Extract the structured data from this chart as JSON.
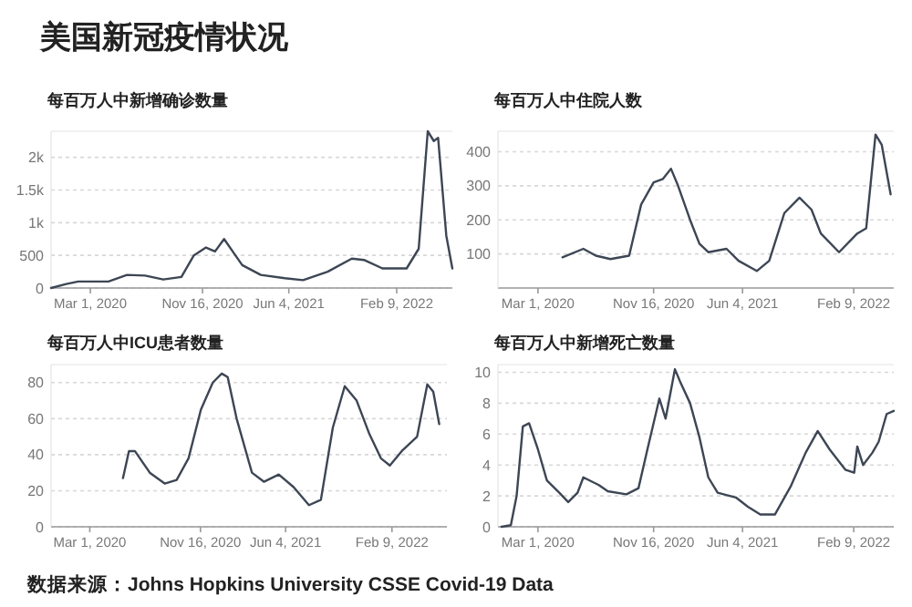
{
  "chart_data": [
    {
      "type": "line",
      "title": "美国新冠疫情状况",
      "subtitle": "每百万人中新增确诊数量",
      "annotations": [
        "数据来源：Johns Hopkins University CSSE Covid-19 Data"
      ],
      "grid": "y",
      "xlim": [
        "2019-12-01",
        "2022-06-18"
      ],
      "xticks": [
        {
          "value": "2020-03-01",
          "label": "Mar 1, 2020"
        },
        {
          "value": "2020-11-16",
          "label": "Nov 16, 2020"
        },
        {
          "value": "2021-06-04",
          "label": "Jun 4, 2021"
        },
        {
          "value": "2022-02-09",
          "label": "Feb 9, 2022"
        }
      ],
      "ylim": [
        0,
        2400
      ],
      "yticks": [
        0,
        500,
        {
          "value": 1000,
          "label": "1k"
        },
        {
          "value": 1500,
          "label": "1.5k"
        },
        {
          "value": 2000,
          "label": "2k"
        }
      ],
      "x": [
        "2019-12-01",
        "2020-01-05",
        "2020-02-02",
        "2020-04-12",
        "2020-05-25",
        "2020-07-06",
        "2020-08-17",
        "2020-09-28",
        "2020-10-27",
        "2020-11-24",
        "2020-12-15",
        "2021-01-05",
        "2021-01-26",
        "2021-02-16",
        "2021-03-31",
        "2021-05-26",
        "2021-07-07",
        "2021-09-02",
        "2021-10-28",
        "2021-11-25",
        "2022-01-07",
        "2022-03-04",
        "2022-04-01",
        "2022-04-22",
        "2022-05-06",
        "2022-05-16",
        "2022-06-04",
        "2022-06-18"
      ],
      "series": [
        {
          "color": "#3d4654",
          "values": [
            0,
            60,
            100,
            100,
            200,
            190,
            130,
            170,
            500,
            620,
            560,
            750,
            550,
            350,
            200,
            150,
            120,
            250,
            450,
            430,
            300,
            300,
            600,
            2400,
            2250,
            2300,
            800,
            300
          ]
        }
      ]
    },
    {
      "type": "line",
      "title": "每百万人中住院人数",
      "grid": "y",
      "xlim": [
        "2019-12-02",
        "2022-05-10"
      ],
      "xticks": [
        {
          "value": "2020-03-01",
          "label": "Mar 1, 2020"
        },
        {
          "value": "2020-11-16",
          "label": "Nov 16, 2020"
        },
        {
          "value": "2021-06-04",
          "label": "Jun 4, 2021"
        },
        {
          "value": "2022-02-09",
          "label": "Feb 9, 2022"
        }
      ],
      "ylim": [
        0,
        460
      ],
      "yticks": [
        100,
        200,
        300,
        400
      ],
      "x": [
        "2020-04-25",
        "2020-06-11",
        "2020-07-09",
        "2020-08-11",
        "2020-09-22",
        "2020-10-19",
        "2020-11-16",
        "2020-12-07",
        "2020-12-25",
        "2021-01-10",
        "2021-02-06",
        "2021-02-27",
        "2021-03-19",
        "2021-04-29",
        "2021-05-26",
        "2021-07-06",
        "2021-08-03",
        "2021-09-06",
        "2021-10-10",
        "2021-11-06",
        "2021-11-27",
        "2022-01-07",
        "2022-02-17",
        "2022-03-09",
        "2022-03-30",
        "2022-04-13",
        "2022-05-03"
      ],
      "series": [
        {
          "color": "#3d4654",
          "values": [
            90,
            115,
            95,
            85,
            95,
            245,
            310,
            320,
            350,
            300,
            200,
            130,
            105,
            115,
            80,
            50,
            80,
            220,
            265,
            230,
            160,
            105,
            160,
            175,
            450,
            420,
            275
          ]
        }
      ]
    },
    {
      "type": "line",
      "title": "每百万人中ICU患者数量",
      "grid": "y",
      "xlim": [
        "2019-12-01",
        "2022-06-18"
      ],
      "xticks": [
        {
          "value": "2020-03-01",
          "label": "Mar 1, 2020"
        },
        {
          "value": "2020-11-16",
          "label": "Nov 16, 2020"
        },
        {
          "value": "2021-06-04",
          "label": "Jun 4, 2021"
        },
        {
          "value": "2022-02-09",
          "label": "Feb 9, 2022"
        }
      ],
      "ylim": [
        0,
        90
      ],
      "yticks": [
        0,
        20,
        40,
        60,
        80
      ],
      "x": [
        "2020-05-18",
        "2020-06-01",
        "2020-06-15",
        "2020-07-20",
        "2020-08-24",
        "2020-09-21",
        "2020-10-19",
        "2020-11-17",
        "2020-12-15",
        "2021-01-05",
        "2021-01-19",
        "2021-02-09",
        "2021-03-17",
        "2021-04-14",
        "2021-05-19",
        "2021-06-23",
        "2021-07-29",
        "2021-08-26",
        "2021-09-23",
        "2021-10-21",
        "2021-11-18",
        "2021-12-17",
        "2022-01-14",
        "2022-02-04",
        "2022-03-04",
        "2022-04-09",
        "2022-05-03",
        "2022-05-17",
        "2022-05-31"
      ],
      "series": [
        {
          "color": "#3d4654",
          "values": [
            27,
            42,
            42,
            30,
            24,
            26,
            38,
            65,
            80,
            85,
            83,
            60,
            30,
            25,
            29,
            22,
            12,
            15,
            55,
            78,
            70,
            52,
            38,
            34,
            42,
            50,
            79,
            75,
            57
          ]
        }
      ]
    },
    {
      "type": "line",
      "title": "每百万人中新增死亡数量",
      "grid": "y",
      "xlim": [
        "2019-12-02",
        "2022-05-10"
      ],
      "xticks": [
        {
          "value": "2020-03-01",
          "label": "Mar 1, 2020"
        },
        {
          "value": "2020-11-16",
          "label": "Nov 16, 2020"
        },
        {
          "value": "2021-06-04",
          "label": "Jun 4, 2021"
        },
        {
          "value": "2022-02-09",
          "label": "Feb 9, 2022"
        }
      ],
      "ylim": [
        0,
        10.5
      ],
      "yticks": [
        0,
        2,
        4,
        6,
        8,
        10
      ],
      "x": [
        "2019-12-10",
        "2019-12-31",
        "2020-01-13",
        "2020-01-27",
        "2020-02-10",
        "2020-03-01",
        "2020-03-21",
        "2020-04-18",
        "2020-05-08",
        "2020-05-29",
        "2020-06-11",
        "2020-07-16",
        "2020-08-05",
        "2020-09-16",
        "2020-10-13",
        "2020-11-02",
        "2020-11-29",
        "2020-12-13",
        "2021-01-03",
        "2021-01-16",
        "2021-02-06",
        "2021-02-27",
        "2021-03-19",
        "2021-04-09",
        "2021-05-20",
        "2021-06-16",
        "2021-07-14",
        "2021-08-16",
        "2021-09-20",
        "2021-10-24",
        "2021-11-20",
        "2021-12-17",
        "2022-01-21",
        "2022-02-10",
        "2022-02-17",
        "2022-03-02",
        "2022-03-23",
        "2022-04-06",
        "2022-04-24",
        "2022-05-10"
      ],
      "series": [
        {
          "color": "#3d4654",
          "values": [
            0,
            0.1,
            2,
            6.5,
            6.7,
            5,
            3,
            2.2,
            1.6,
            2.2,
            3.2,
            2.7,
            2.3,
            2.1,
            2.5,
            5,
            8.3,
            7,
            10.2,
            9.3,
            8,
            5.8,
            3.2,
            2.2,
            1.9,
            1.3,
            0.8,
            0.8,
            2.6,
            4.8,
            6.2,
            5,
            3.7,
            3.5,
            5.2,
            4,
            4.8,
            5.5,
            7.3,
            7.5
          ]
        }
      ]
    }
  ]
}
